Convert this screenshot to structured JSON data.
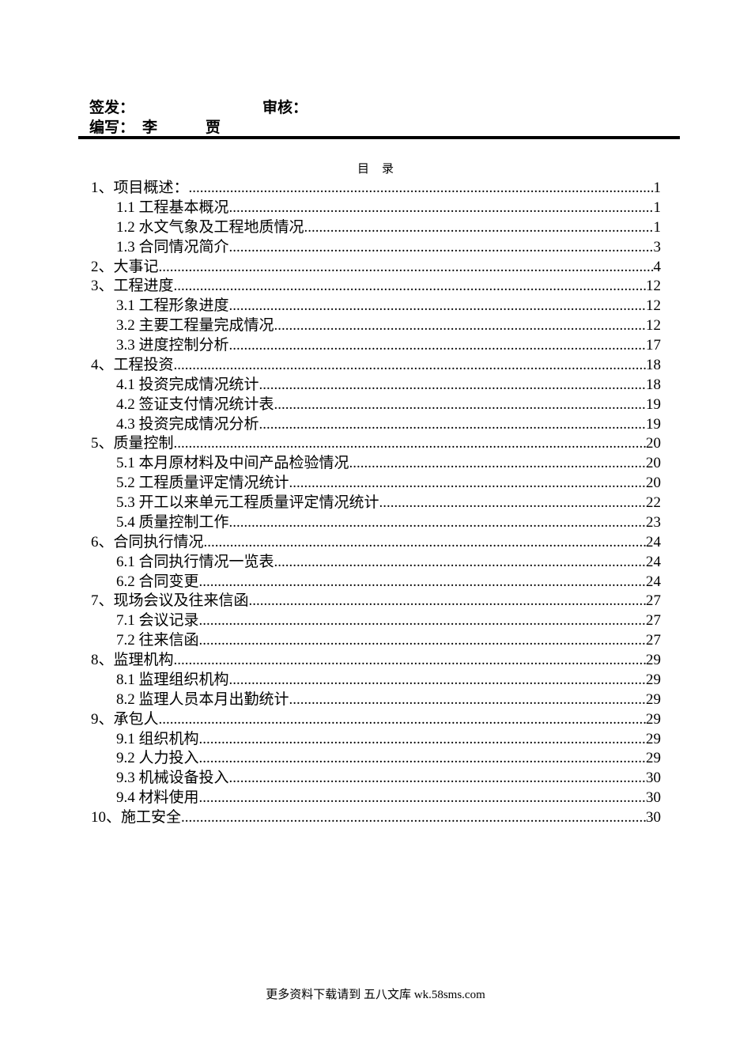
{
  "header": {
    "sign_label": "签发：",
    "review_label": "审核：",
    "author_label": "编写：",
    "author1": "李",
    "author2": "贾"
  },
  "toc": {
    "title_a": "目",
    "title_b": "录",
    "items": [
      {
        "level": 1,
        "label": "1、项目概述：",
        "page": "1"
      },
      {
        "level": 2,
        "label": "1.1 工程基本概况",
        "page": "1"
      },
      {
        "level": 2,
        "label": "1.2 水文气象及工程地质情况",
        "page": "1"
      },
      {
        "level": 2,
        "label": "1.3 合同情况简介",
        "page": "3"
      },
      {
        "level": 1,
        "label": "2、大事记",
        "page": "4"
      },
      {
        "level": 1,
        "label": "3、工程进度",
        "page": "12"
      },
      {
        "level": 2,
        "label": "3.1 工程形象进度",
        "page": "12"
      },
      {
        "level": 2,
        "label": "3.2 主要工程量完成情况",
        "page": "12"
      },
      {
        "level": 2,
        "label": "3.3 进度控制分析",
        "page": "17"
      },
      {
        "level": 1,
        "label": "4、工程投资",
        "page": "18"
      },
      {
        "level": 2,
        "label": "4.1 投资完成情况统计",
        "page": "18"
      },
      {
        "level": 2,
        "label": "4.2 签证支付情况统计表",
        "page": "19"
      },
      {
        "level": 2,
        "label": "4.3 投资完成情况分析",
        "page": "19"
      },
      {
        "level": 1,
        "label": "5、质量控制",
        "page": "20"
      },
      {
        "level": 2,
        "label": "5.1 本月原材料及中间产品检验情况",
        "page": "20"
      },
      {
        "level": 2,
        "label": "5.2 工程质量评定情况统计",
        "page": "20"
      },
      {
        "level": 2,
        "label": "5.3 开工以来单元工程质量评定情况统计",
        "page": "22"
      },
      {
        "level": 2,
        "label": "5.4 质量控制工作",
        "page": "23"
      },
      {
        "level": 1,
        "label": "6、合同执行情况",
        "page": "24"
      },
      {
        "level": 2,
        "label": "6.1 合同执行情况一览表",
        "page": "24"
      },
      {
        "level": 2,
        "label": "6.2 合同变更",
        "page": "24"
      },
      {
        "level": 1,
        "label": "7、现场会议及往来信函",
        "page": "27"
      },
      {
        "level": 2,
        "label": "7.1 会议记录",
        "page": "27"
      },
      {
        "level": 2,
        "label": "7.2 往来信函",
        "page": "27"
      },
      {
        "level": 1,
        "label": "8、监理机构",
        "page": "29"
      },
      {
        "level": 2,
        "label": "8.1 监理组织机构",
        "page": "29"
      },
      {
        "level": 2,
        "label": "8.2 监理人员本月出勤统计",
        "page": "29"
      },
      {
        "level": 1,
        "label": "9、承包人",
        "page": "29"
      },
      {
        "level": 2,
        "label": "9.1 组织机构",
        "page": "29"
      },
      {
        "level": 2,
        "label": "9.2 人力投入",
        "page": "29"
      },
      {
        "level": 2,
        "label": "9.3 机械设备投入",
        "page": "30"
      },
      {
        "level": 2,
        "label": "9.4 材料使用",
        "page": "30"
      },
      {
        "level": 1,
        "label": "10、施工安全",
        "page": "30"
      }
    ]
  },
  "footer": {
    "text": "更多资料下载请到 五八文库 wk.58sms.com"
  }
}
